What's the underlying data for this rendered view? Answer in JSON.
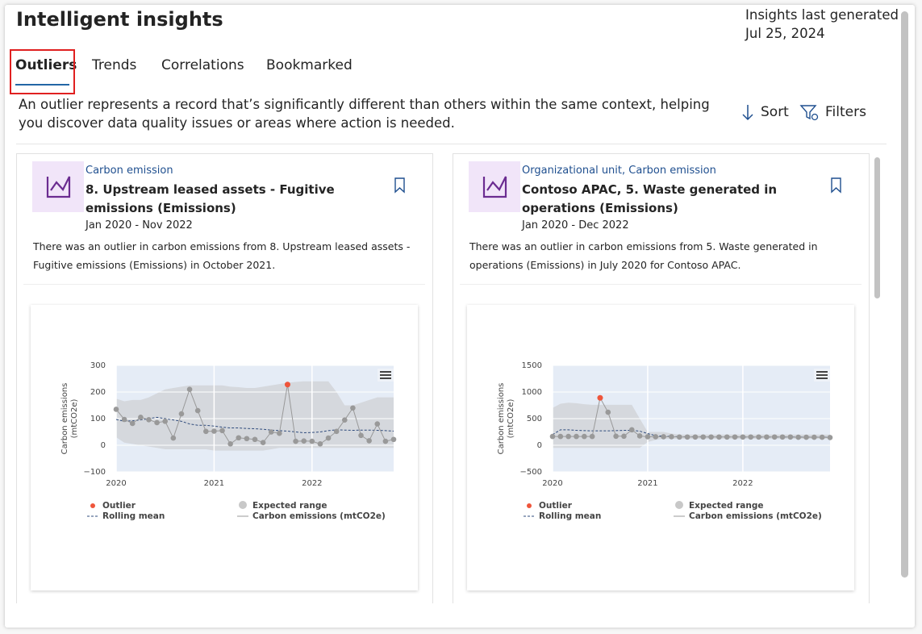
{
  "header": {
    "title": "Intelligent insights",
    "generated_label": "Insights last generated",
    "generated_date": "Jul 25, 2024"
  },
  "tabs": {
    "items": [
      "Outliers",
      "Trends",
      "Correlations",
      "Bookmarked"
    ],
    "active": 0
  },
  "description": "An outlier represents a record that’s significantly different than others within the same context, helping you discover data quality issues or areas where action is needed.",
  "toolbar": {
    "sort": "Sort",
    "filters": "Filters"
  },
  "cards": [
    {
      "category": "Carbon emission",
      "title": "8. Upstream leased assets - Fugitive emissions (Emissions)",
      "date_range": "Jan 2020 - Nov 2022",
      "text": "There was an outlier in carbon emissions from 8. Upstream leased assets - Fugitive emissions (Emissions) in October 2021.",
      "chart": {
        "type": "line",
        "y_label": [
          "Carbon emissions",
          "(mtCO2e)"
        ],
        "ylim": [
          -100,
          300
        ],
        "yticks": [
          {
            "value": -100,
            "label": "−100"
          },
          0,
          100,
          200,
          300
        ],
        "xlim": [
          0,
          34
        ],
        "xticks": [
          {
            "value": 0,
            "label": "2020"
          },
          {
            "value": 12,
            "label": "2021"
          },
          {
            "value": 24,
            "label": "2022"
          }
        ],
        "series": [
          {
            "name": "Outlier",
            "style": "points",
            "color": "#ef553b",
            "values": [
              null,
              null,
              null,
              null,
              null,
              null,
              null,
              null,
              null,
              null,
              null,
              null,
              null,
              null,
              null,
              null,
              null,
              null,
              null,
              null,
              null,
              228,
              null,
              null,
              null,
              null,
              null,
              null,
              null,
              null,
              null,
              null,
              null,
              null,
              null
            ]
          },
          {
            "name": "Expected range",
            "style": "band",
            "color": "#c8c8c8",
            "upper": [
              175,
              165,
              170,
              170,
              180,
              195,
              210,
              215,
              220,
              225,
              225,
              225,
              225,
              225,
              220,
              218,
              215,
              215,
              220,
              225,
              230,
              235,
              238,
              240,
              240,
              240,
              240,
              200,
              150,
              150,
              160,
              170,
              180,
              180,
              180
            ],
            "lower": [
              30,
              10,
              5,
              0,
              -5,
              -10,
              -15,
              -15,
              -15,
              -15,
              -15,
              -15,
              -20,
              -20,
              -20,
              -20,
              -20,
              -20,
              -20,
              -15,
              -10,
              -10,
              -10,
              -10,
              -10,
              -10,
              -10,
              -10,
              -10,
              -10,
              -10,
              -10,
              -10,
              -10,
              -10
            ]
          },
          {
            "name": "Rolling mean",
            "style": "dashed",
            "color": "#2f4b7c",
            "values": [
              97,
              90,
              92,
              95,
              100,
              105,
              100,
              95,
              90,
              80,
              75,
              75,
              72,
              68,
              65,
              65,
              63,
              62,
              60,
              57,
              55,
              53,
              50,
              47,
              48,
              50,
              55,
              58,
              57,
              56,
              57,
              57,
              56,
              55,
              53
            ]
          },
          {
            "name": "Carbon emissions (mtCO2e)",
            "style": "line-points",
            "color": "#999999",
            "values": [
              135,
              97,
              82,
              105,
              96,
              85,
              90,
              27,
              118,
              210,
              130,
              52,
              53,
              55,
              5,
              28,
              25,
              22,
              10,
              50,
              45,
              228,
              15,
              16,
              15,
              5,
              27,
              52,
              95,
              140,
              37,
              17,
              80,
              15,
              22
            ]
          }
        ]
      }
    },
    {
      "category": "Organizational unit, Carbon emission",
      "title": "Contoso APAC, 5. Waste generated in operations (Emissions)",
      "date_range": "Jan 2020 - Dec 2022",
      "text": "There was an outlier in carbon emissions from 5. Waste generated in operations (Emissions) in July 2020 for Contoso APAC.",
      "chart": {
        "type": "line",
        "y_label": [
          "Carbon emissions",
          "(mtCO2e)"
        ],
        "ylim": [
          -500,
          1500
        ],
        "yticks": [
          {
            "value": -500,
            "label": "−500"
          },
          0,
          500,
          1000,
          1500
        ],
        "xlim": [
          0,
          35
        ],
        "xticks": [
          {
            "value": 0,
            "label": "2020"
          },
          {
            "value": 12,
            "label": "2021"
          },
          {
            "value": 24,
            "label": "2022"
          }
        ],
        "series": [
          {
            "name": "Outlier",
            "style": "points",
            "color": "#ef553b",
            "values": [
              null,
              null,
              null,
              null,
              null,
              null,
              890,
              null,
              null,
              null,
              null,
              null,
              null,
              null,
              null,
              null,
              null,
              null,
              null,
              null,
              null,
              null,
              null,
              null,
              null,
              null,
              null,
              null,
              null,
              null,
              null,
              null,
              null,
              null,
              null,
              null
            ]
          },
          {
            "name": "Expected range",
            "style": "band",
            "color": "#c8c8c8",
            "upper": [
              700,
              780,
              800,
              790,
              770,
              760,
              760,
              760,
              760,
              760,
              760,
              500,
              250,
              250,
              250,
              220,
              200,
              200,
              200,
              200,
              200,
              200,
              200,
              200,
              200,
              200,
              200,
              200,
              200,
              200,
              200,
              200,
              200,
              200,
              200,
              200
            ],
            "lower": [
              -50,
              -50,
              -50,
              -50,
              -50,
              -50,
              -50,
              -50,
              -50,
              -50,
              -50,
              -50,
              60,
              100,
              120,
              120,
              120,
              120,
              120,
              120,
              120,
              120,
              120,
              120,
              120,
              120,
              120,
              120,
              120,
              120,
              120,
              120,
              120,
              120,
              120,
              120
            ]
          },
          {
            "name": "Rolling mean",
            "style": "dashed",
            "color": "#2f4b7c",
            "values": [
              200,
              290,
              290,
              280,
              275,
              270,
              270,
              270,
              275,
              280,
              280,
              265,
              220,
              180,
              170,
              165,
              160,
              160,
              160,
              158,
              158,
              157,
              157,
              157,
              156,
              156,
              156,
              156,
              155,
              155,
              155,
              154,
              153,
              152,
              151,
              150
            ]
          },
          {
            "name": "Carbon emissions (mtCO2e)",
            "style": "line-points",
            "color": "#999999",
            "values": [
              165,
              165,
              165,
              165,
              165,
              165,
              890,
              620,
              170,
              170,
              290,
              175,
              160,
              160,
              160,
              160,
              155,
              155,
              155,
              155,
              155,
              155,
              155,
              155,
              155,
              155,
              155,
              155,
              155,
              155,
              155,
              150,
              150,
              150,
              150,
              145
            ]
          }
        ]
      }
    }
  ]
}
